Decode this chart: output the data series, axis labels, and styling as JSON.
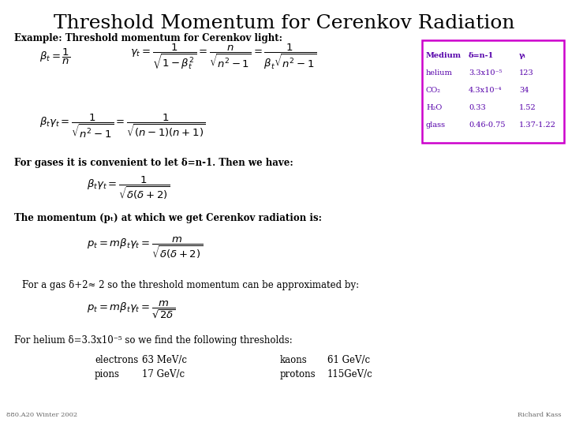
{
  "title": "Threshold Momentum for Cerenkov Radiation",
  "title_fontsize": 18,
  "background_color": "#ffffff",
  "text_color": "#000000",
  "table_border_color": "#cc00cc",
  "table_text_color": "#5500aa",
  "table_data": {
    "headers": [
      "Medium",
      "δ=n-1",
      "γᵢ"
    ],
    "rows": [
      [
        "helium",
        "3.3x10⁻⁵",
        "123"
      ],
      [
        "CO₂",
        "4.3x10⁻⁴",
        "34"
      ],
      [
        "H₂O",
        "0.33",
        "1.52"
      ],
      [
        "glass",
        "0.46-0.75",
        "1.37-1.22"
      ]
    ]
  },
  "equations": {
    "eq1_left": "$\\beta_t = \\dfrac{1}{n}$",
    "eq1_right": "$\\gamma_t = \\dfrac{1}{\\sqrt{1-\\beta_t^2}} = \\dfrac{n}{\\sqrt{n^2-1}} = \\dfrac{1}{\\beta_t\\sqrt{n^2-1}}$",
    "eq2": "$\\beta_t\\gamma_t = \\dfrac{1}{\\sqrt{n^2-1}} = \\dfrac{1}{\\sqrt{(n-1)(n+1)}}$",
    "eq3": "$\\beta_t\\gamma_t = \\dfrac{1}{\\sqrt{\\delta(\\delta+2)}}$",
    "eq4": "$p_t = m\\beta_t\\gamma_t = \\dfrac{m}{\\sqrt{\\delta(\\delta+2)}}$",
    "eq5": "$p_t = m\\beta_t\\gamma_t = \\dfrac{m}{\\sqrt{2\\delta}}$"
  },
  "text_lines": {
    "line1": "Example: Threshold momentum for Cerenkov light:",
    "line2": "For gases it is convenient to let δ=n-1. Then we have:",
    "line3": "The momentum (pₜ) at which we get Cerenkov radiation is:",
    "line4": "For a gas δ+2≈ 2 so the threshold momentum can be approximated by:",
    "line5": "For helium δ=3.3x10⁻⁵ so we find the following thresholds:",
    "electrons": "electrons",
    "electrons_val": "63 MeV/c",
    "kaons": "kaons",
    "kaons_val": "61 GeV/c",
    "pions": "pions",
    "pions_val": "17 GeV/c",
    "protons": "protons",
    "protons_val": "115GeV/c"
  },
  "footer_left": "880.A20 Winter 2002",
  "footer_right": "Richard Kass",
  "text_fontsize": 8.5,
  "eq_fontsize": 9.5,
  "table_fontsize": 7.0,
  "footer_fontsize": 6.0
}
